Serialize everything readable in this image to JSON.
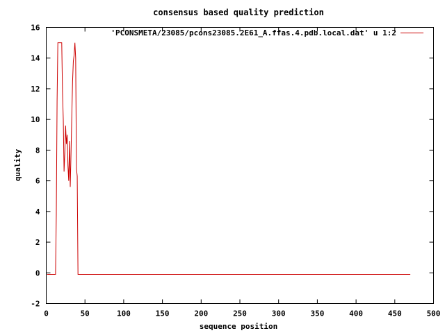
{
  "chart_data": {
    "type": "line",
    "title": "consensus based quality prediction",
    "xlabel": "sequence position",
    "ylabel": "quality",
    "xlim": [
      0,
      500
    ],
    "ylim": [
      -2,
      16
    ],
    "x_ticks": [
      0,
      50,
      100,
      150,
      200,
      250,
      300,
      350,
      400,
      450,
      500
    ],
    "y_ticks": [
      -2,
      0,
      2,
      4,
      6,
      8,
      10,
      12,
      14,
      16
    ],
    "grid": false,
    "legend_position": "top-right",
    "series": [
      {
        "name": "'PCONSMETA/23085/pcons23085.2E61_A.ffas.4.pdb.local.dat' u 1:2",
        "color": "#cc0000",
        "x": [
          1,
          12,
          13,
          14,
          15,
          16,
          18,
          20,
          21,
          22,
          23,
          24,
          25,
          26,
          27,
          28,
          29,
          30,
          31,
          32,
          33,
          34,
          35,
          36,
          37,
          38,
          39,
          40,
          41,
          42,
          43,
          470
        ],
        "y": [
          -0.1,
          -0.1,
          3.8,
          11.2,
          15.0,
          15.0,
          15.0,
          15.0,
          11.8,
          10.0,
          6.6,
          7.8,
          9.6,
          8.4,
          9.0,
          7.0,
          6.0,
          8.6,
          5.6,
          7.8,
          10.2,
          12.5,
          13.8,
          14.2,
          15.0,
          14.0,
          6.8,
          6.3,
          -0.1,
          -0.1,
          -0.1,
          -0.1
        ]
      }
    ]
  }
}
